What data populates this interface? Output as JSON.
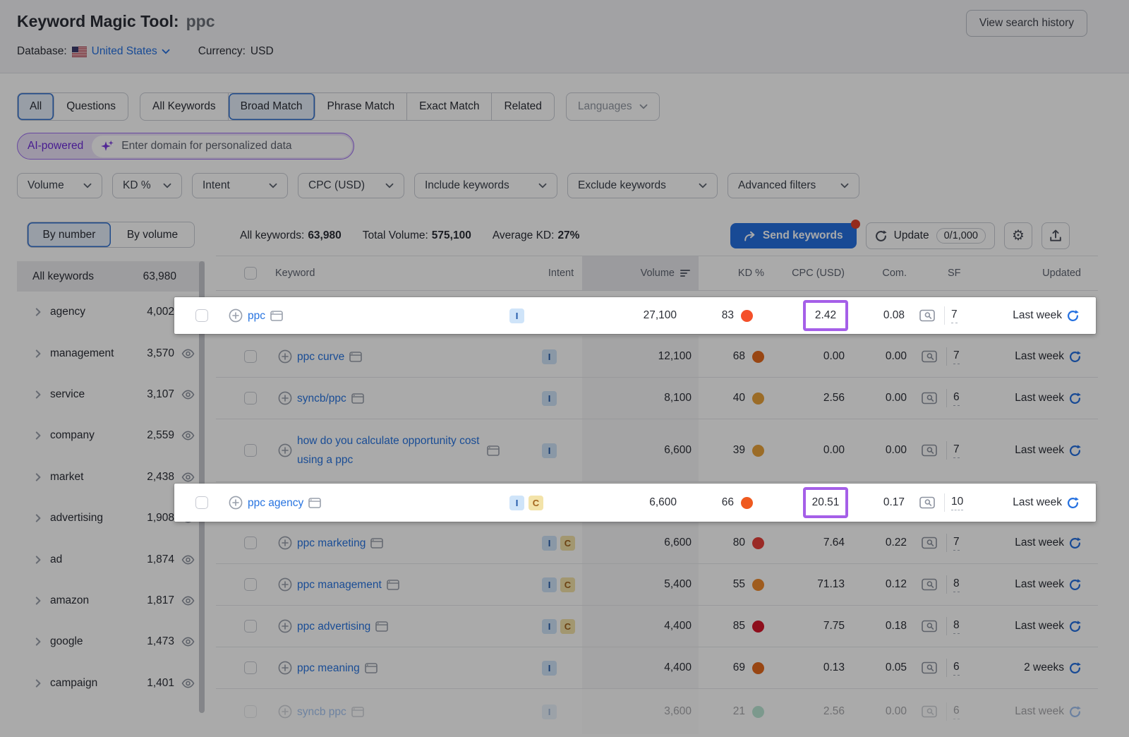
{
  "header": {
    "title": "Keyword Magic Tool:",
    "query": "ppc",
    "database_label": "Database:",
    "database_value": "United States",
    "currency_label": "Currency:",
    "currency_value": "USD",
    "view_history": "View search history"
  },
  "tabs": {
    "group1": [
      {
        "label": "All",
        "selected": true
      },
      {
        "label": "Questions",
        "selected": false
      }
    ],
    "group2": [
      {
        "label": "All Keywords",
        "selected": false
      },
      {
        "label": "Broad Match",
        "selected": true
      },
      {
        "label": "Phrase Match",
        "selected": false
      },
      {
        "label": "Exact Match",
        "selected": false
      },
      {
        "label": "Related",
        "selected": false
      }
    ],
    "languages": "Languages"
  },
  "ai_bar": {
    "badge": "AI-powered",
    "placeholder": "Enter domain for personalized data"
  },
  "filters": [
    "Volume",
    "KD %",
    "Intent",
    "CPC (USD)",
    "Include keywords",
    "Exclude keywords",
    "Advanced filters"
  ],
  "sidebar": {
    "toggle": {
      "by_number": "By number",
      "by_volume": "By volume"
    },
    "list_header": {
      "label": "All keywords",
      "count": "63,980"
    },
    "groups": [
      {
        "label": "agency",
        "count": "4,002"
      },
      {
        "label": "management",
        "count": "3,570"
      },
      {
        "label": "service",
        "count": "3,107"
      },
      {
        "label": "company",
        "count": "2,559"
      },
      {
        "label": "market",
        "count": "2,438"
      },
      {
        "label": "advertising",
        "count": "1,908"
      },
      {
        "label": "ad",
        "count": "1,874"
      },
      {
        "label": "amazon",
        "count": "1,817"
      },
      {
        "label": "google",
        "count": "1,473"
      },
      {
        "label": "campaign",
        "count": "1,401"
      }
    ]
  },
  "stats": {
    "all_keywords_label": "All keywords:",
    "all_keywords": "63,980",
    "total_volume_label": "Total Volume:",
    "total_volume": "575,100",
    "avg_kd_label": "Average KD:",
    "avg_kd": "27%",
    "send_keywords": "Send keywords",
    "update": "Update",
    "update_quota": "0/1,000"
  },
  "table": {
    "columns": {
      "keyword": "Keyword",
      "intent": "Intent",
      "volume": "Volume",
      "kd": "KD %",
      "cpc": "CPC (USD)",
      "com": "Com.",
      "sf": "SF",
      "updated": "Updated"
    },
    "rows": [
      {
        "keyword": "ppc",
        "intents": [
          "I"
        ],
        "volume": "27,100",
        "kd": "83",
        "kd_color": "#f4502a",
        "cpc": "2.42",
        "com": "0.08",
        "sf": "7",
        "updated": "Last week",
        "highlight": true,
        "cpc_boxed": true
      },
      {
        "keyword": "ppc curve",
        "intents": [
          "I"
        ],
        "volume": "12,100",
        "kd": "68",
        "kd_color": "#e4691d",
        "cpc": "0.00",
        "com": "0.00",
        "sf": "7",
        "updated": "Last week"
      },
      {
        "keyword": "syncb/ppc",
        "intents": [
          "I"
        ],
        "volume": "8,100",
        "kd": "40",
        "kd_color": "#e9a23b",
        "cpc": "2.56",
        "com": "0.00",
        "sf": "6",
        "updated": "Last week"
      },
      {
        "keyword": "how do you calculate opportunity cost using a ppc",
        "intents": [
          "I"
        ],
        "volume": "6,600",
        "kd": "39",
        "kd_color": "#e9a23b",
        "cpc": "0.00",
        "com": "0.00",
        "sf": "7",
        "updated": "Last week",
        "multiline": true
      },
      {
        "keyword": "ppc agency",
        "intents": [
          "I",
          "C"
        ],
        "volume": "6,600",
        "kd": "66",
        "kd_color": "#ef5a1f",
        "cpc": "20.51",
        "com": "0.17",
        "sf": "10",
        "updated": "Last week",
        "highlight": true,
        "cpc_boxed": true
      },
      {
        "keyword": "ppc marketing",
        "intents": [
          "I",
          "C"
        ],
        "volume": "6,600",
        "kd": "80",
        "kd_color": "#e8403a",
        "cpc": "7.64",
        "com": "0.22",
        "sf": "7",
        "updated": "Last week"
      },
      {
        "keyword": "ppc management",
        "intents": [
          "I",
          "C"
        ],
        "volume": "5,400",
        "kd": "55",
        "kd_color": "#ef8a2e",
        "cpc": "71.13",
        "com": "0.12",
        "sf": "8",
        "updated": "Last week"
      },
      {
        "keyword": "ppc advertising",
        "intents": [
          "I",
          "C"
        ],
        "volume": "4,400",
        "kd": "85",
        "kd_color": "#d6152b",
        "cpc": "7.75",
        "com": "0.18",
        "sf": "8",
        "updated": "Last week"
      },
      {
        "keyword": "ppc meaning",
        "intents": [
          "I"
        ],
        "volume": "4,400",
        "kd": "69",
        "kd_color": "#e4691d",
        "cpc": "0.13",
        "com": "0.05",
        "sf": "6",
        "updated": "2 weeks"
      },
      {
        "keyword": "syncb ppc",
        "intents": [
          "I"
        ],
        "volume": "3,600",
        "kd": "21",
        "kd_color": "#5fc69b",
        "cpc": "2.56",
        "com": "0.00",
        "sf": "6",
        "updated": "Last week",
        "faded": true
      }
    ]
  },
  "icons": {
    "flag": "us-flag-icon",
    "dropdown": "chevron-down-icon",
    "sidebar_expand": "chevron-right-icon",
    "visibility": "eye-icon",
    "add_keyword": "plus-circle-icon",
    "keyword_serp": "serp-card-icon",
    "serp_features": "serp-features-icon",
    "send": "send-arrow-icon",
    "refresh": "refresh-icon",
    "sort": "sort-desc-icon",
    "settings": "gear-icon",
    "export": "export-icon",
    "sparkle": "sparkle-icon"
  },
  "colors": {
    "accent_blue": "#2470e0",
    "highlight_purple": "#a55fe8",
    "ai_purple": "#6d2bd9",
    "notification_red": "#de3f2a",
    "intent_informational_bg": "#cfe4f9",
    "intent_informational_fg": "#2058a8",
    "intent_commercial_bg": "#f3e3a9",
    "intent_commercial_fg": "#a2641c"
  }
}
